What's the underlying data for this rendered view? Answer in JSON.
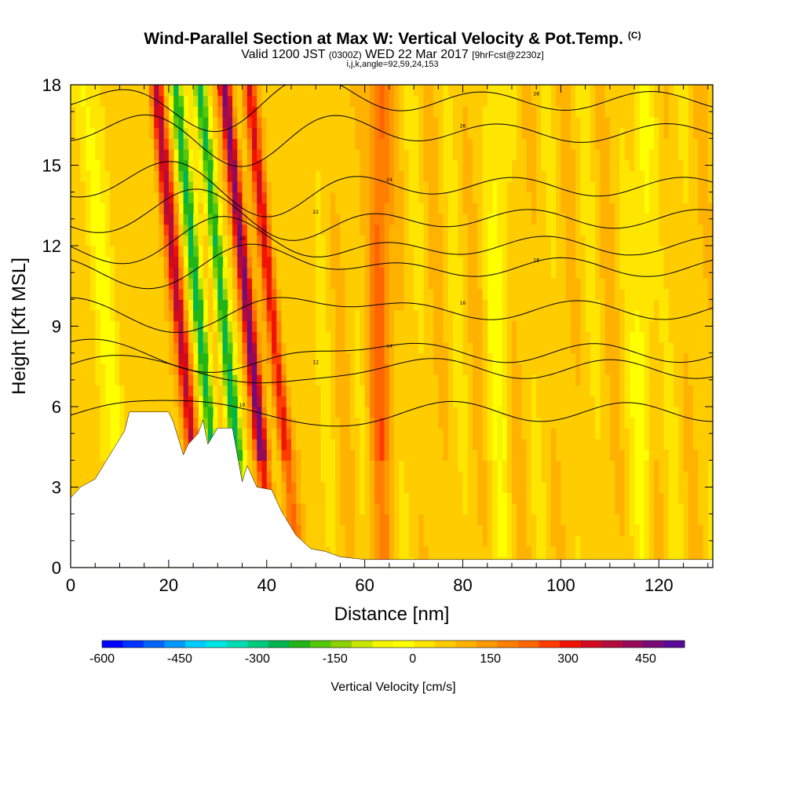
{
  "header": {
    "title": "Wind-Parallel Section at Max W: Vertical Velocity & Pot.Temp.",
    "title_suffix": "(C)",
    "subtitle_a": "Valid 1200 JST",
    "subtitle_b": "(0300Z)",
    "subtitle_c": "WED 22 Mar 2017",
    "subtitle_d": "[9hrFcst@2230z]",
    "subtitle_e": "i,j,k,angle=92,59,24,153"
  },
  "colorbar": {
    "title": "Vertical Velocity [cm/s]",
    "tick_labels": [
      "-600",
      "-450",
      "-300",
      "-150",
      "0",
      "150",
      "300",
      "450"
    ],
    "tick_values": [
      -600,
      -450,
      -300,
      -150,
      0,
      150,
      300,
      450
    ],
    "range": [
      -600,
      525
    ],
    "step": 37.5,
    "colors": [
      "#0000ff",
      "#0033ff",
      "#0066ff",
      "#0099ff",
      "#00ccff",
      "#00e5e5",
      "#00dcb4",
      "#00cc80",
      "#00b450",
      "#22b418",
      "#55c80a",
      "#8cd200",
      "#c8e600",
      "#f5f500",
      "#ffff00",
      "#ffe600",
      "#ffcc00",
      "#ffb300",
      "#ff9900",
      "#ff8000",
      "#ff6600",
      "#ff3c00",
      "#f01400",
      "#d20a1e",
      "#b40a3c",
      "#960a5a",
      "#780a78",
      "#5a0a96"
    ]
  },
  "chart_data": {
    "type": "heatmap",
    "title": "Wind-Parallel Section at Max W: Vertical Velocity & Pot.Temp.",
    "xlabel": "Distance [nm]",
    "ylabel": "Height [Kft MSL]",
    "xlim": [
      0,
      131
    ],
    "ylim": [
      0,
      18
    ],
    "x_ticks": [
      "0",
      "20",
      "40",
      "60",
      "80",
      "100",
      "120"
    ],
    "x_tick_values": [
      0,
      20,
      40,
      60,
      80,
      100,
      120
    ],
    "y_ticks": [
      "0",
      "3",
      "6",
      "9",
      "12",
      "15",
      "18"
    ],
    "y_tick_values": [
      0,
      3,
      6,
      9,
      12,
      15,
      18
    ],
    "field": "Vertical Velocity [cm/s]",
    "contour_field": "Potential Temperature (C)",
    "wave_columns": [
      {
        "x": 9,
        "w_cm_s": -75
      },
      {
        "x": 24,
        "w_cm_s": 300
      },
      {
        "x": 28,
        "w_cm_s": -300
      },
      {
        "x": 33,
        "w_cm_s": -300
      },
      {
        "x": 38,
        "w_cm_s": 375
      },
      {
        "x": 43,
        "w_cm_s": 240
      },
      {
        "x": 63,
        "w_cm_s": 150
      },
      {
        "x": 87,
        "w_cm_s": -60
      },
      {
        "x": 117,
        "w_cm_s": -75
      }
    ],
    "terrain_kft": [
      {
        "x": 0,
        "h": 2.6
      },
      {
        "x": 2,
        "h": 3.0
      },
      {
        "x": 5,
        "h": 3.3
      },
      {
        "x": 7,
        "h": 3.9
      },
      {
        "x": 9,
        "h": 4.5
      },
      {
        "x": 11,
        "h": 5.1
      },
      {
        "x": 12,
        "h": 5.8
      },
      {
        "x": 18,
        "h": 5.8
      },
      {
        "x": 20,
        "h": 5.8
      },
      {
        "x": 21,
        "h": 5.4
      },
      {
        "x": 23,
        "h": 4.2
      },
      {
        "x": 24,
        "h": 4.6
      },
      {
        "x": 26,
        "h": 5.0
      },
      {
        "x": 27,
        "h": 5.5
      },
      {
        "x": 28,
        "h": 4.6
      },
      {
        "x": 30,
        "h": 5.2
      },
      {
        "x": 33,
        "h": 5.2
      },
      {
        "x": 35,
        "h": 3.2
      },
      {
        "x": 36,
        "h": 3.8
      },
      {
        "x": 38,
        "h": 3.0
      },
      {
        "x": 41,
        "h": 2.9
      },
      {
        "x": 43,
        "h": 2.1
      },
      {
        "x": 46,
        "h": 1.2
      },
      {
        "x": 49,
        "h": 0.7
      },
      {
        "x": 52,
        "h": 0.6
      },
      {
        "x": 55,
        "h": 0.4
      },
      {
        "x": 60,
        "h": 0.3
      },
      {
        "x": 131,
        "h": 0.3
      }
    ],
    "theta_contours": [
      {
        "label": "10",
        "base_kft": 5.8
      },
      {
        "label": "12",
        "base_kft": 7.4
      },
      {
        "label": "14",
        "base_kft": 8.0
      },
      {
        "label": "16",
        "base_kft": 9.6
      },
      {
        "label": "18",
        "base_kft": 11.2
      },
      {
        "label": "20",
        "base_kft": 12.0
      },
      {
        "label": "22",
        "base_kft": 13.0
      },
      {
        "label": "24",
        "base_kft": 14.2
      },
      {
        "label": "26",
        "base_kft": 16.2
      },
      {
        "label": "28",
        "base_kft": 17.4
      }
    ]
  }
}
